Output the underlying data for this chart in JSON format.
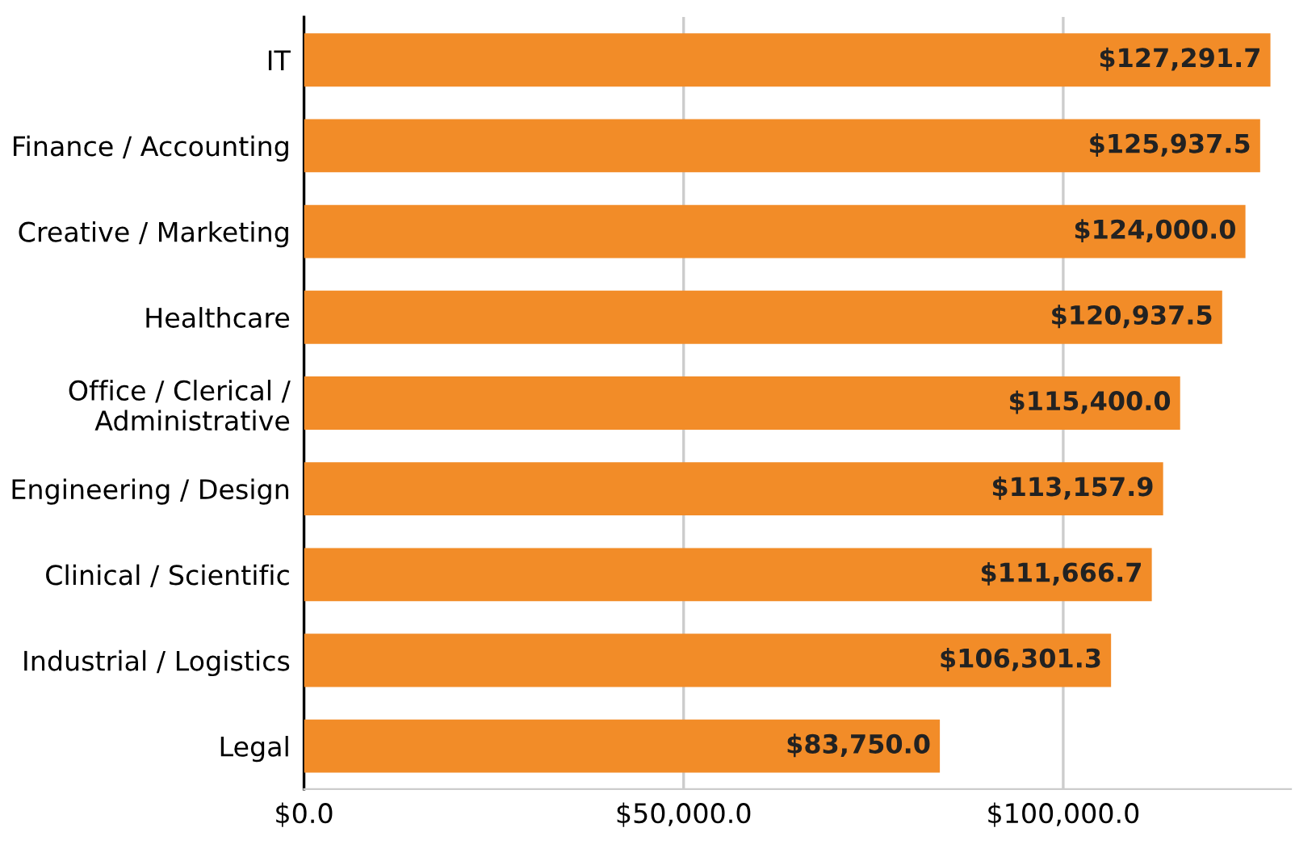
{
  "chart_data": {
    "type": "bar",
    "orientation": "horizontal",
    "categories": [
      "IT",
      "Finance / Accounting",
      "Creative / Marketing",
      "Healthcare",
      "Office / Clerical /\nAdministrative",
      "Engineering / Design",
      "Clinical / Scientific",
      "Industrial / Logistics",
      "Legal"
    ],
    "values": [
      127291.7,
      125937.5,
      124000.0,
      120937.5,
      115400.0,
      113157.9,
      111666.7,
      106301.3,
      83750.0
    ],
    "value_labels": [
      "$127,291.7",
      "$125,937.5",
      "$124,000.0",
      "$120,937.5",
      "$115,400.0",
      "$113,157.9",
      "$111,666.7",
      "$106,301.3",
      "$83,750.0"
    ],
    "color": "#f28c28",
    "xlim": [
      0,
      130000
    ],
    "xticks": [
      {
        "value": 0,
        "label": "$0.0"
      },
      {
        "value": 50000,
        "label": "$50,000.0"
      },
      {
        "value": 100000,
        "label": "$100,000.0"
      }
    ],
    "grid": "x"
  }
}
